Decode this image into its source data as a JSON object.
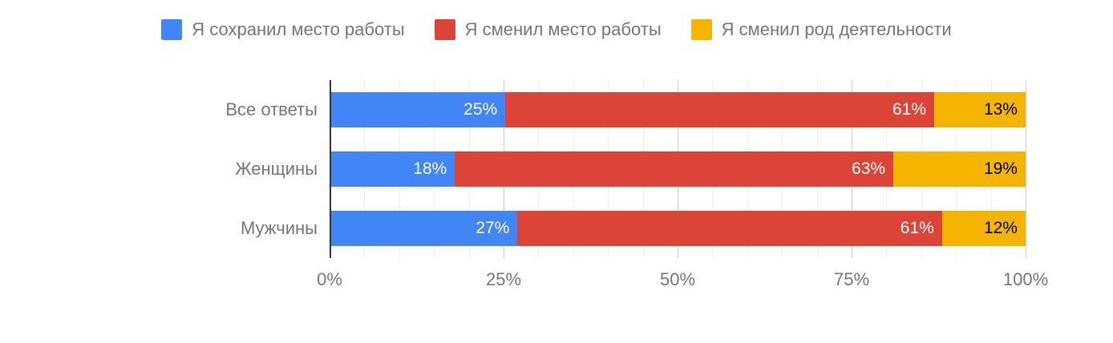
{
  "chart_data": {
    "type": "bar",
    "orientation": "horizontal",
    "stacked": true,
    "title": "",
    "categories": [
      "Все ответы",
      "Женщины",
      "Мужчины"
    ],
    "series": [
      {
        "name": "Я сохранил место работы",
        "color": "#4285F4",
        "label_color": "#FFFFFF",
        "values": [
          25,
          18,
          27
        ]
      },
      {
        "name": "Я сменил место работы",
        "color": "#DB4437",
        "label_color": "#FFFFFF",
        "values": [
          61,
          63,
          61
        ]
      },
      {
        "name": "Я сменил род деятельности",
        "color": "#F4B400",
        "label_color": "#000000",
        "values": [
          13,
          19,
          12
        ]
      }
    ],
    "value_suffix": "%",
    "x_ticks": [
      "0%",
      "25%",
      "50%",
      "75%",
      "100%"
    ],
    "xlim": [
      0,
      100
    ],
    "grid": {
      "minor_step": 5,
      "major_step": 25,
      "minor_color": "#EFEFEF",
      "major_color": "#CCCCCC",
      "baseline_color": "#333333"
    },
    "legend_position": "top",
    "text_color": "#757575",
    "background": "#FFFFFF"
  }
}
